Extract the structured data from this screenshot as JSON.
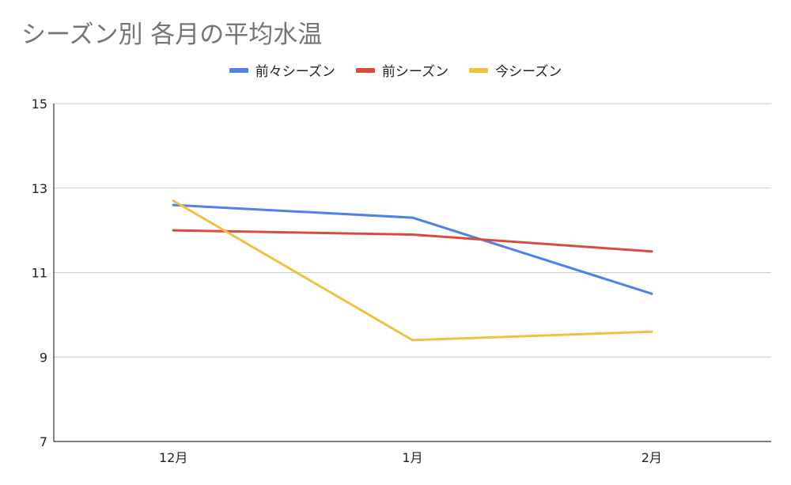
{
  "chart_data": {
    "type": "line",
    "title": "シーズン別 各月の平均水温",
    "xlabel": "",
    "ylabel": "",
    "categories": [
      "12月",
      "1月",
      "2月"
    ],
    "ylim": [
      7,
      15
    ],
    "yticks": [
      "15",
      "13",
      "11",
      "9",
      "7"
    ],
    "grid": true,
    "legend_position": "top",
    "series": [
      {
        "name": "前々シーズン",
        "color": "#4f81e8",
        "values": [
          12.6,
          12.3,
          10.5
        ]
      },
      {
        "name": "前シーズン",
        "color": "#d94c3d",
        "values": [
          12.0,
          11.9,
          11.5
        ]
      },
      {
        "name": "今シーズン",
        "color": "#f2c03f",
        "values": [
          12.7,
          9.4,
          9.6
        ]
      }
    ]
  }
}
